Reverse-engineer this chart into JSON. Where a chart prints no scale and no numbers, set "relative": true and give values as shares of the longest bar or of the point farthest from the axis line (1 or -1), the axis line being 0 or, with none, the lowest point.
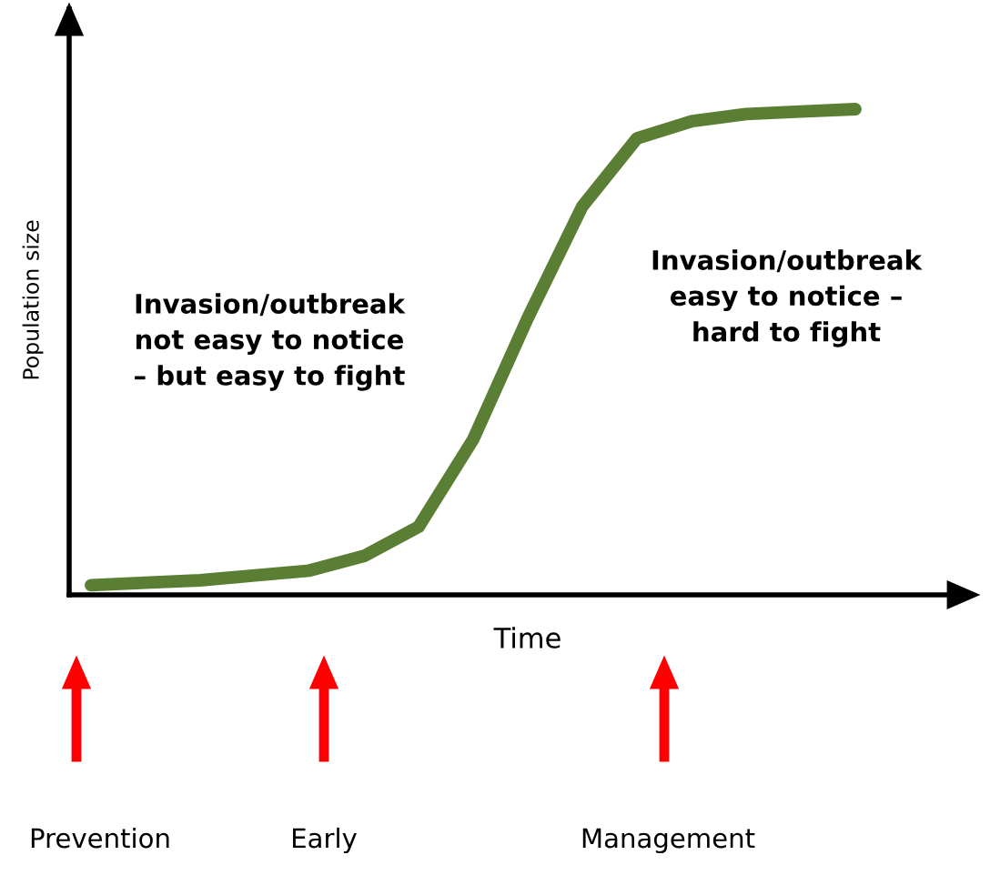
{
  "chart_data": {
    "type": "line",
    "relative": true,
    "xlabel": "Time",
    "ylabel": "Population size",
    "categories": [
      null,
      null,
      null,
      null,
      null,
      null,
      null,
      null,
      null,
      null,
      null,
      null,
      null,
      null,
      null
    ],
    "series": [
      {
        "color": "#5a7f34",
        "values": [
          0.02,
          0.025,
          0.03,
          0.04,
          0.05,
          0.08,
          0.14,
          0.32,
          0.57,
          0.8,
          0.94,
          0.975,
          0.99,
          0.995,
          1.0
        ]
      }
    ],
    "annotations": [
      "Invasion/outbreak\nnot easy to notice\n– but easy to fight",
      "Invasion/outbreak\neasy to notice –\nhard to fight",
      "Prevention",
      "Early",
      "Management"
    ],
    "grid": false,
    "legend": false,
    "marker": "none",
    "line_style": "solid"
  }
}
